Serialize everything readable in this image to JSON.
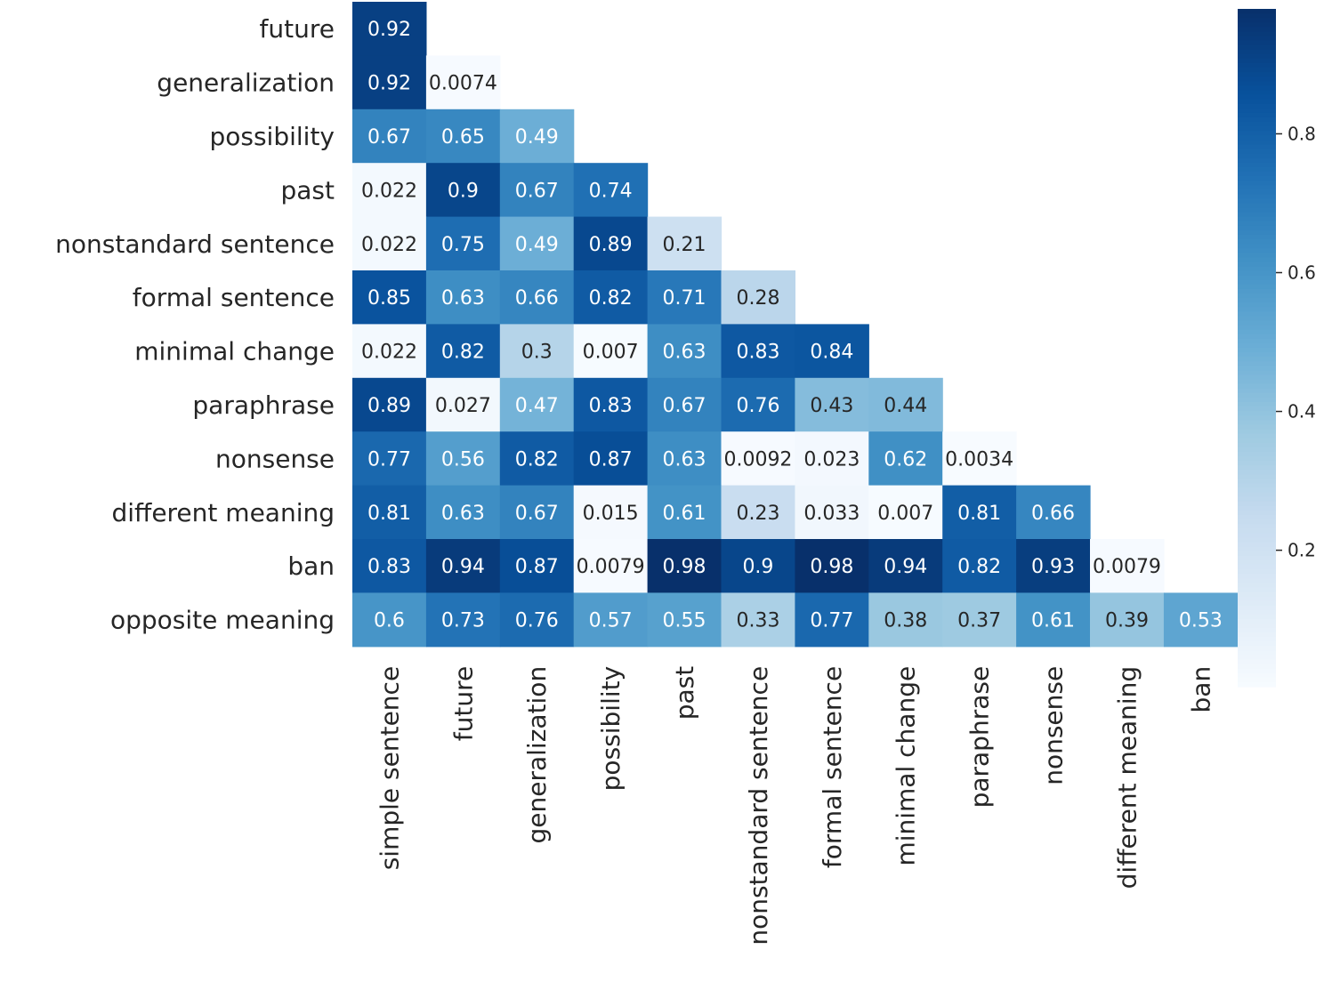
{
  "chart_data": {
    "type": "heatmap",
    "title": "",
    "xlabel": "",
    "ylabel": "",
    "colormap": "Blues",
    "x_labels": [
      "simple sentence",
      "future",
      "generalization",
      "possibility",
      "past",
      "nonstandard sentence",
      "formal sentence",
      "minimal change",
      "paraphrase",
      "nonsense",
      "different meaning",
      "ban"
    ],
    "y_labels": [
      "future",
      "generalization",
      "possibility",
      "past",
      "nonstandard sentence",
      "formal sentence",
      "minimal change",
      "paraphrase",
      "nonsense",
      "different meaning",
      "ban",
      "opposite meaning"
    ],
    "values": [
      [
        0.92
      ],
      [
        0.92,
        0.0074
      ],
      [
        0.67,
        0.65,
        0.49
      ],
      [
        0.022,
        0.9,
        0.67,
        0.74
      ],
      [
        0.022,
        0.75,
        0.49,
        0.89,
        0.21
      ],
      [
        0.85,
        0.63,
        0.66,
        0.82,
        0.71,
        0.28
      ],
      [
        0.022,
        0.82,
        0.3,
        0.007,
        0.63,
        0.83,
        0.84
      ],
      [
        0.89,
        0.027,
        0.47,
        0.83,
        0.67,
        0.76,
        0.43,
        0.44
      ],
      [
        0.77,
        0.56,
        0.82,
        0.87,
        0.63,
        0.0092,
        0.023,
        0.62,
        0.0034
      ],
      [
        0.81,
        0.63,
        0.67,
        0.015,
        0.61,
        0.23,
        0.033,
        0.007,
        0.81,
        0.66
      ],
      [
        0.83,
        0.94,
        0.87,
        0.0079,
        0.98,
        0.9,
        0.98,
        0.94,
        0.82,
        0.93,
        0.0079
      ],
      [
        0.6,
        0.73,
        0.76,
        0.57,
        0.55,
        0.33,
        0.77,
        0.38,
        0.37,
        0.61,
        0.39,
        0.53
      ]
    ],
    "annotations": [
      [
        "0.92"
      ],
      [
        "0.92",
        "0.0074"
      ],
      [
        "0.67",
        "0.65",
        "0.49"
      ],
      [
        "0.022",
        "0.9",
        "0.67",
        "0.74"
      ],
      [
        "0.022",
        "0.75",
        "0.49",
        "0.89",
        "0.21"
      ],
      [
        "0.85",
        "0.63",
        "0.66",
        "0.82",
        "0.71",
        "0.28"
      ],
      [
        "0.022",
        "0.82",
        "0.3",
        "0.007",
        "0.63",
        "0.83",
        "0.84"
      ],
      [
        "0.89",
        "0.027",
        "0.47",
        "0.83",
        "0.67",
        "0.76",
        "0.43",
        "0.44"
      ],
      [
        "0.77",
        "0.56",
        "0.82",
        "0.87",
        "0.63",
        "0.0092",
        "0.023",
        "0.62",
        "0.0034"
      ],
      [
        "0.81",
        "0.63",
        "0.67",
        "0.015",
        "0.61",
        "0.23",
        "0.033",
        "0.007",
        "0.81",
        "0.66"
      ],
      [
        "0.83",
        "0.94",
        "0.87",
        "0.0079",
        "0.98",
        "0.9",
        "0.98",
        "0.94",
        "0.82",
        "0.93",
        "0.0079"
      ],
      [
        "0.6",
        "0.73",
        "0.76",
        "0.57",
        "0.55",
        "0.33",
        "0.77",
        "0.38",
        "0.37",
        "0.61",
        "0.39",
        "0.53"
      ]
    ],
    "colorbar": {
      "range": [
        0.0034,
        0.98
      ],
      "ticks": [
        0.2,
        0.4,
        0.6,
        0.8
      ],
      "tick_labels": [
        "0.2",
        "0.4",
        "0.6",
        "0.8"
      ]
    },
    "grid": false,
    "legend": "colorbar-right"
  }
}
